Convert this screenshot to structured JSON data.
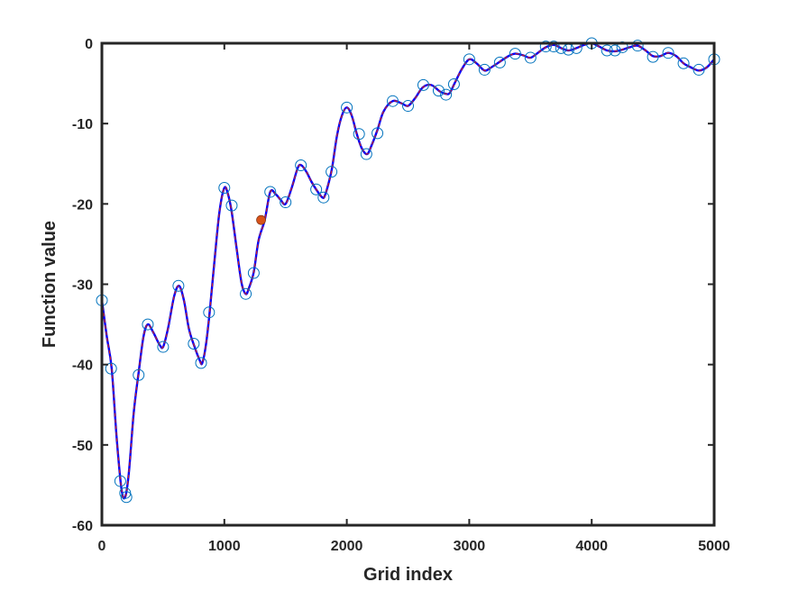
{
  "chart_data": {
    "type": "line",
    "xlabel": "Grid index",
    "ylabel": "Function value",
    "xlim": [
      0,
      5000
    ],
    "ylim": [
      -60,
      0
    ],
    "xticks": [
      0,
      1000,
      2000,
      3000,
      4000,
      5000
    ],
    "yticks": [
      -60,
      -50,
      -40,
      -30,
      -20,
      -10,
      0
    ],
    "xtick_labels": [
      "0",
      "1000",
      "2000",
      "3000",
      "4000",
      "5000"
    ],
    "ytick_labels": [
      "-60",
      "-50",
      "-40",
      "-30",
      "-20",
      "-10",
      "0"
    ],
    "grid": false,
    "series": [
      {
        "style": "line",
        "color": "#0000ff",
        "x": [
          0,
          40,
          80,
          120,
          160,
          190,
          220,
          260,
          300,
          340,
          375,
          420,
          470,
          500,
          540,
          590,
          630,
          670,
          710,
          750,
          800,
          820,
          850,
          880,
          920,
          960,
          1000,
          1030,
          1060,
          1100,
          1140,
          1175,
          1200,
          1240,
          1280,
          1330,
          1375,
          1420,
          1460,
          1500,
          1550,
          1600,
          1630,
          1670,
          1710,
          1750,
          1800,
          1820,
          1850,
          1880,
          1920,
          1960,
          2000,
          2040,
          2080,
          2120,
          2165,
          2200,
          2250,
          2300,
          2375,
          2450,
          2500,
          2560,
          2620,
          2690,
          2760,
          2810,
          2840,
          2880,
          2940,
          3000,
          3060,
          3125,
          3180,
          3250,
          3320,
          3375,
          3440,
          3500,
          3560,
          3625,
          3690,
          3750,
          3810,
          3875,
          3940,
          4000,
          4060,
          4125,
          4190,
          4250,
          4310,
          4375,
          4440,
          4500,
          4560,
          4625,
          4690,
          4750,
          4810,
          4875,
          4940,
          5000
        ],
        "y": [
          -32,
          -36.5,
          -40.5,
          -49,
          -55.5,
          -56.5,
          -53.5,
          -46,
          -41,
          -36.5,
          -35,
          -36,
          -37.5,
          -37.8,
          -35.5,
          -31.5,
          -30.2,
          -32,
          -35.5,
          -37.5,
          -39.5,
          -39.8,
          -37.5,
          -33.5,
          -27,
          -21,
          -18,
          -18.8,
          -21,
          -25.5,
          -29.8,
          -31.2,
          -30.5,
          -28.5,
          -24.5,
          -22,
          -18.5,
          -18.8,
          -19.5,
          -20,
          -18,
          -15.5,
          -15.2,
          -16,
          -17.2,
          -18.2,
          -19.2,
          -19,
          -17.5,
          -15.5,
          -11.5,
          -9,
          -8,
          -9,
          -11.2,
          -13,
          -13.8,
          -12.8,
          -10.8,
          -8.5,
          -7.2,
          -7.5,
          -7.8,
          -6.8,
          -5.5,
          -5.2,
          -6,
          -6.3,
          -6.2,
          -5,
          -3.2,
          -2,
          -2.5,
          -3.4,
          -3,
          -2.3,
          -1.6,
          -1.3,
          -1.5,
          -1.8,
          -1.2,
          -0.5,
          -0.2,
          -0.6,
          -0.9,
          -0.6,
          -0.2,
          0,
          -0.4,
          -0.9,
          -1,
          -0.8,
          -0.5,
          -0.3,
          -0.9,
          -1.6,
          -1.6,
          -1.2,
          -1.6,
          -2.5,
          -3,
          -3.4,
          -3,
          -2
        ]
      },
      {
        "style": "dashed-line",
        "color": "#cc2222",
        "x": [
          0,
          40,
          80,
          120,
          160,
          190,
          220,
          260,
          300,
          340,
          375,
          420,
          470,
          500,
          540,
          590,
          630,
          670,
          710,
          750,
          800,
          820,
          850,
          880,
          920,
          960,
          1000,
          1030,
          1060,
          1100,
          1140,
          1175,
          1200,
          1240,
          1280,
          1330,
          1375,
          1420,
          1460,
          1500,
          1550,
          1600,
          1630,
          1670,
          1710,
          1750,
          1800,
          1820,
          1850,
          1880,
          1920,
          1960,
          2000,
          2040,
          2080,
          2120,
          2165,
          2200,
          2250,
          2300,
          2375,
          2450,
          2500,
          2560,
          2620,
          2690,
          2760,
          2810,
          2840,
          2880,
          2940,
          3000,
          3060,
          3125,
          3180,
          3250,
          3320,
          3375,
          3440,
          3500,
          3560,
          3625,
          3690,
          3750,
          3810,
          3875,
          3940,
          4000,
          4060,
          4125,
          4190,
          4250,
          4310,
          4375,
          4440,
          4500,
          4560,
          4625,
          4690,
          4750,
          4810,
          4875,
          4940,
          5000
        ],
        "y": [
          -32,
          -36.5,
          -40.5,
          -49,
          -55.5,
          -56.5,
          -53.5,
          -46,
          -41,
          -36.5,
          -35,
          -36,
          -37.5,
          -37.8,
          -35.5,
          -31.5,
          -30.2,
          -32,
          -35.5,
          -37.5,
          -39.5,
          -39.8,
          -37.5,
          -33.5,
          -27,
          -21,
          -18,
          -18.8,
          -21,
          -25.5,
          -29.8,
          -31.2,
          -30.5,
          -28.5,
          -24.5,
          -22,
          -18.5,
          -18.8,
          -19.5,
          -20,
          -18,
          -15.5,
          -15.2,
          -16,
          -17.2,
          -18.2,
          -19.2,
          -19,
          -17.5,
          -15.5,
          -11.5,
          -9,
          -8,
          -9,
          -11.2,
          -13,
          -13.8,
          -12.8,
          -10.8,
          -8.5,
          -7.2,
          -7.5,
          -7.8,
          -6.8,
          -5.5,
          -5.2,
          -6,
          -6.3,
          -6.2,
          -5,
          -3.2,
          -2,
          -2.5,
          -3.4,
          -3,
          -2.3,
          -1.6,
          -1.3,
          -1.5,
          -1.8,
          -1.2,
          -0.5,
          -0.2,
          -0.6,
          -0.9,
          -0.6,
          -0.2,
          0,
          -0.4,
          -0.9,
          -1,
          -0.8,
          -0.5,
          -0.3,
          -0.9,
          -1.6,
          -1.6,
          -1.2,
          -1.6,
          -2.5,
          -3,
          -3.4,
          -3,
          -2
        ]
      },
      {
        "style": "markers",
        "marker": "open-circle",
        "color": "#0072bd",
        "x": [
          0,
          75,
          150,
          190,
          200,
          300,
          375,
          500,
          625,
          750,
          810,
          875,
          1000,
          1060,
          1175,
          1240,
          1375,
          1500,
          1625,
          1750,
          1810,
          1875,
          2000,
          2100,
          2160,
          2250,
          2375,
          2500,
          2625,
          2750,
          2810,
          2875,
          3000,
          3125,
          3250,
          3375,
          3500,
          3625,
          3690,
          3750,
          3810,
          3875,
          4000,
          4125,
          4190,
          4250,
          4375,
          4500,
          4625,
          4750,
          4875,
          5000
        ],
        "y": [
          -32,
          -40.5,
          -54.5,
          -56,
          -56.5,
          -41.3,
          -35,
          -37.8,
          -30.2,
          -37.4,
          -39.8,
          -33.5,
          -18,
          -20.2,
          -31.2,
          -28.6,
          -18.5,
          -19.8,
          -15.2,
          -18.2,
          -19.2,
          -16,
          -8,
          -11.3,
          -13.8,
          -11.2,
          -7.2,
          -7.8,
          -5.2,
          -5.9,
          -6.4,
          -5.1,
          -2,
          -3.3,
          -2.4,
          -1.3,
          -1.8,
          -0.4,
          -0.4,
          -0.6,
          -0.8,
          -0.6,
          0,
          -0.9,
          -0.9,
          -0.5,
          -0.3,
          -1.7,
          -1.2,
          -2.5,
          -3.3,
          -2
        ]
      },
      {
        "style": "markers",
        "marker": "filled-circle",
        "color": "#d95319",
        "x": [
          1300
        ],
        "y": [
          -22
        ]
      }
    ]
  }
}
